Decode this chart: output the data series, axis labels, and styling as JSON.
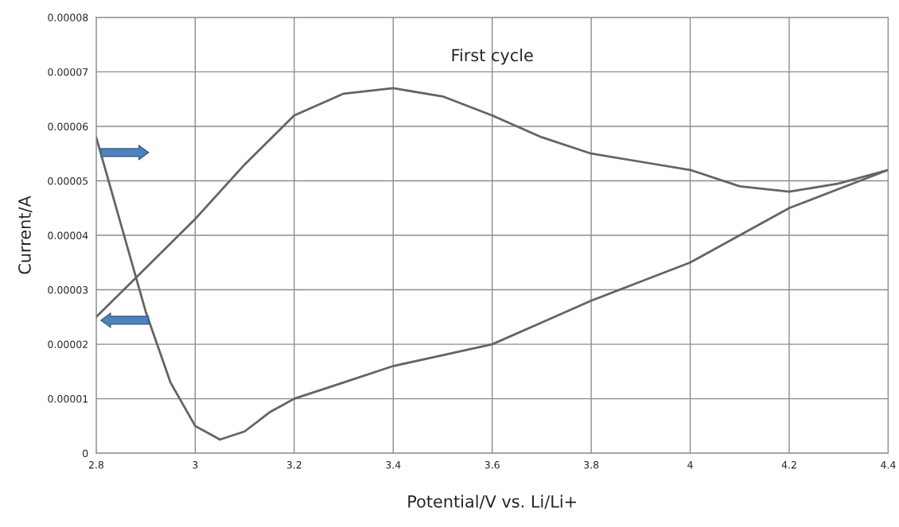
{
  "chart_data": {
    "type": "line",
    "title": "First cycle",
    "xlabel": "Potential/V vs. Li/Li+",
    "ylabel": "Current/A",
    "series": [
      {
        "color": "#646464",
        "x": [
          2.8,
          2.85,
          2.9,
          2.95,
          3.0,
          3.05,
          3.1,
          3.15,
          3.2,
          3.3,
          3.4,
          3.5,
          3.6,
          3.7,
          3.8,
          3.9,
          4.0,
          4.1,
          4.2,
          4.3,
          4.4,
          4.3,
          4.2,
          4.1,
          4.0,
          3.9,
          3.8,
          3.7,
          3.6,
          3.5,
          3.4,
          3.3,
          3.2,
          3.1,
          3.0,
          2.9,
          2.8
        ],
        "values": [
          5.8e-05,
          4.2e-05,
          2.6e-05,
          1.3e-05,
          5e-06,
          2.5e-06,
          4e-06,
          7.5e-06,
          1e-05,
          1.3e-05,
          1.6e-05,
          1.8e-05,
          2e-05,
          2.4e-05,
          2.8e-05,
          3.15e-05,
          3.5e-05,
          4e-05,
          4.5e-05,
          4.85e-05,
          5.2e-05,
          4.95e-05,
          4.8e-05,
          4.9e-05,
          5.2e-05,
          5.35e-05,
          5.5e-05,
          5.8e-05,
          6.2e-05,
          6.55e-05,
          6.7e-05,
          6.6e-05,
          6.2e-05,
          5.3e-05,
          4.3e-05,
          3.4e-05,
          2.5e-05
        ]
      }
    ],
    "xlim": [
      2.8,
      4.4
    ],
    "xticks": [
      2.8,
      3,
      3.2,
      3.4,
      3.6,
      3.8,
      4,
      4.2,
      4.4
    ],
    "ylim": [
      0,
      8e-05
    ],
    "yticks": [
      0,
      {
        "value": 1e-05,
        "label": "0.00001"
      },
      {
        "value": 2e-05,
        "label": "0.00002"
      },
      {
        "value": 3e-05,
        "label": "0.00003"
      },
      {
        "value": 4e-05,
        "label": "0.00004"
      },
      {
        "value": 5e-05,
        "label": "0.00005"
      },
      {
        "value": 6e-05,
        "label": "0.00006"
      },
      {
        "value": 7e-05,
        "label": "0.00007"
      },
      {
        "value": 8e-05,
        "label": "0.00008"
      }
    ],
    "grid": true,
    "marker": "none",
    "line_style": "solid"
  }
}
